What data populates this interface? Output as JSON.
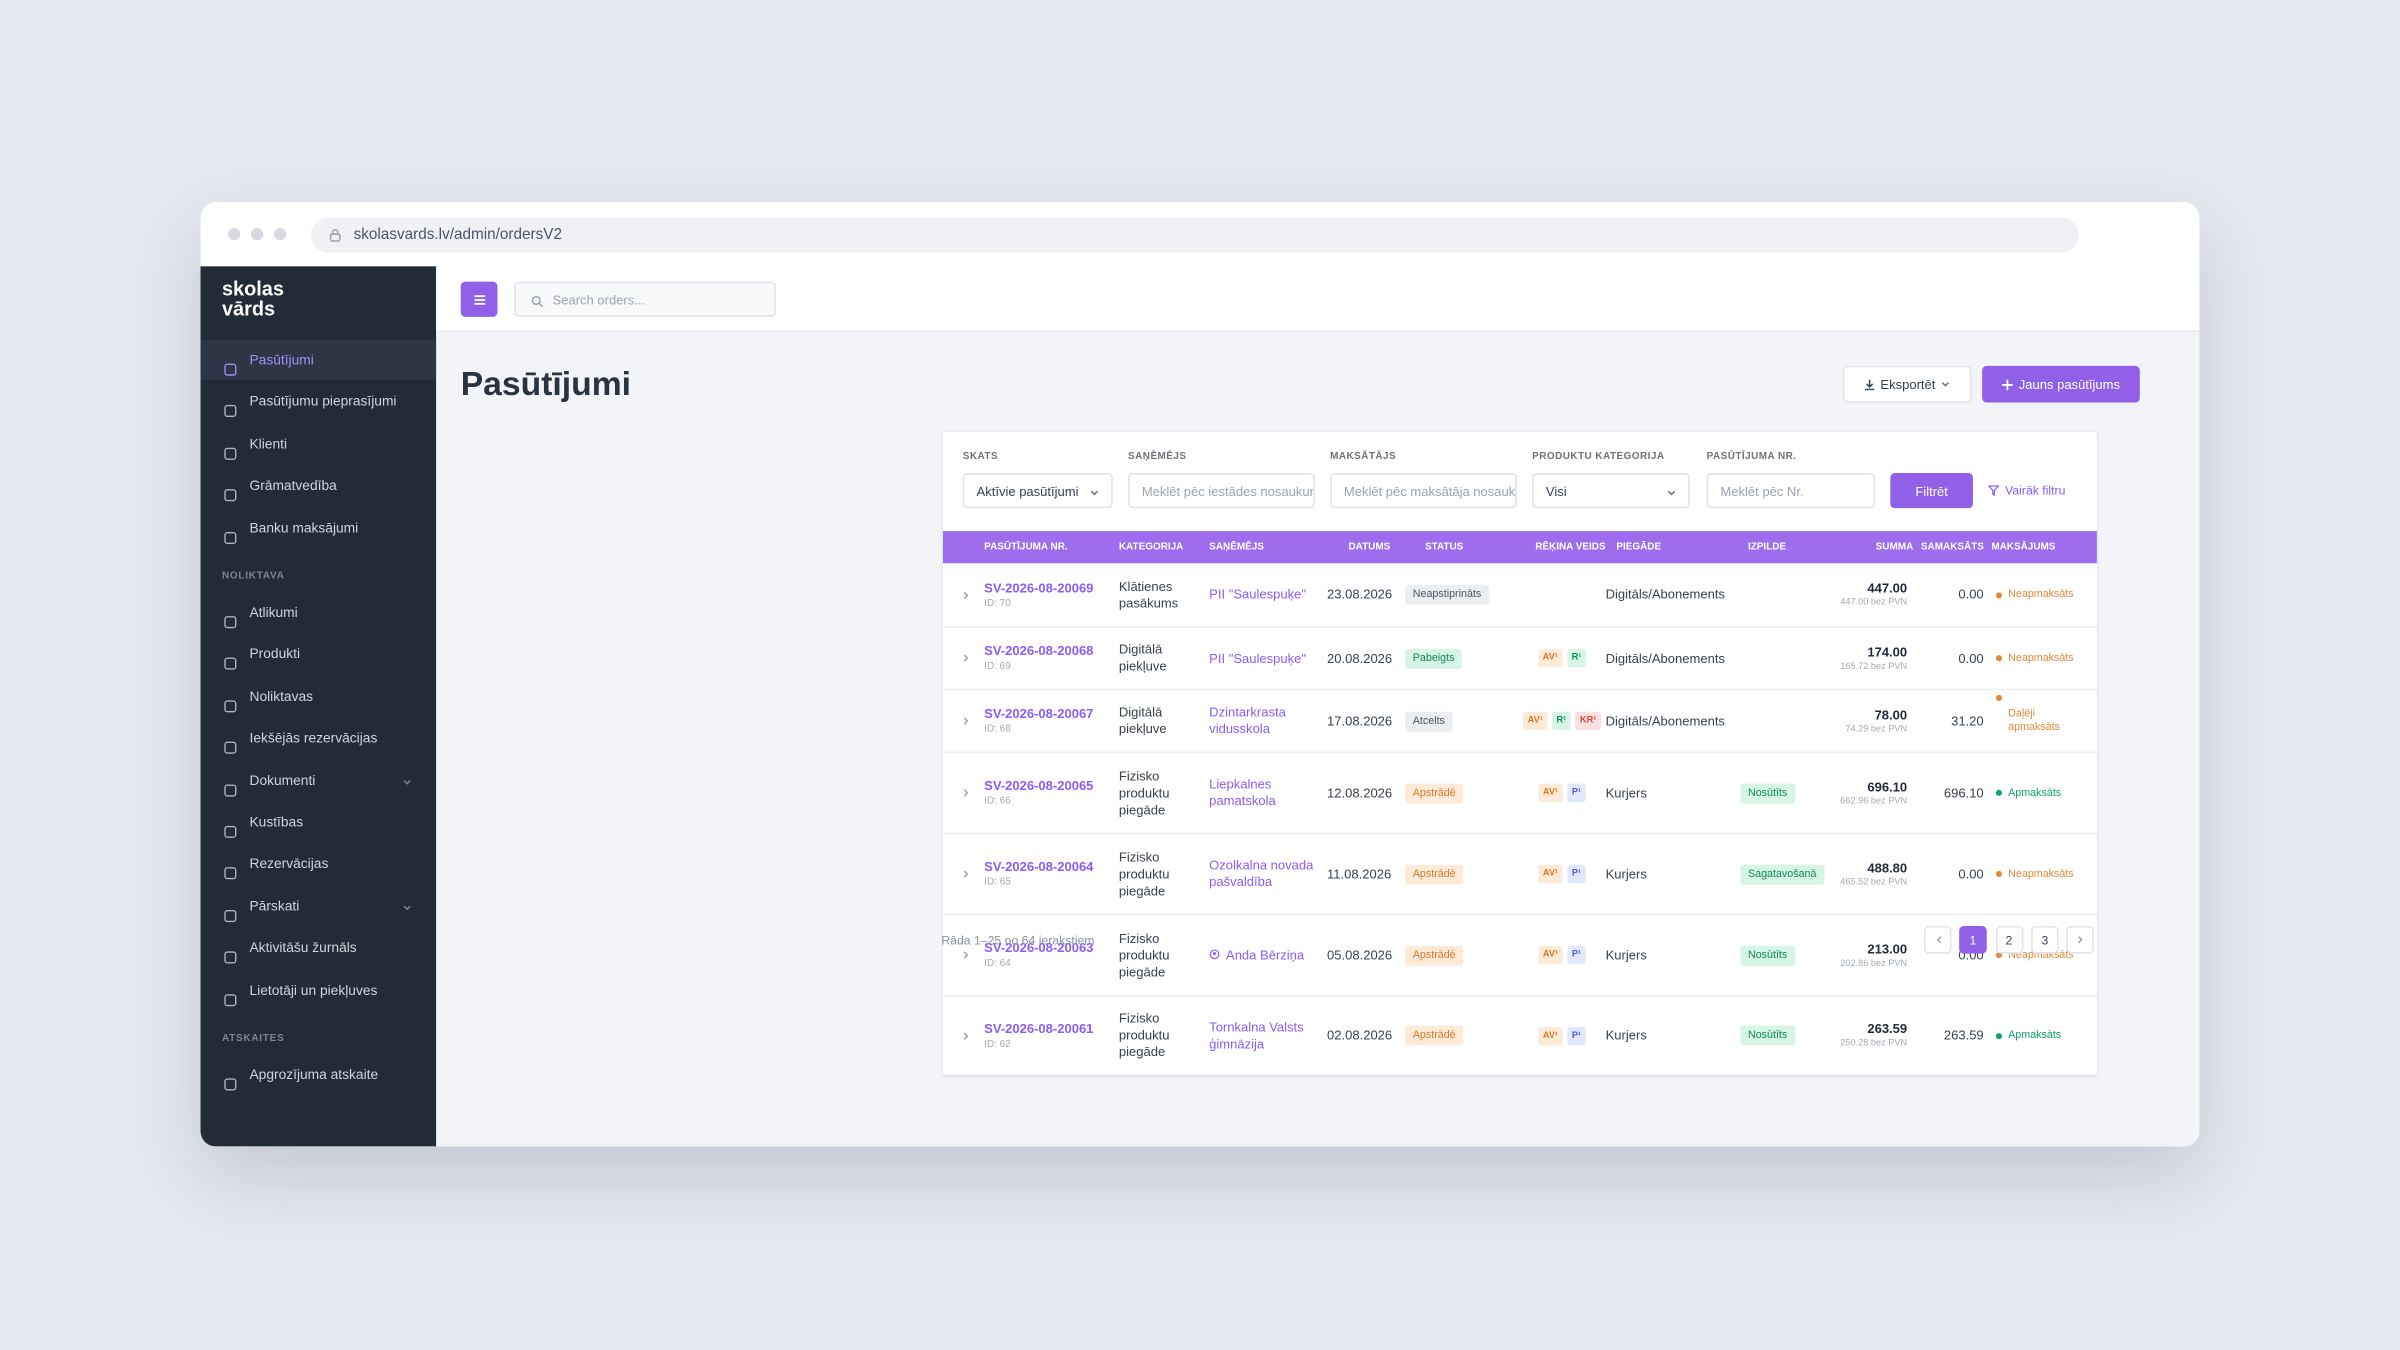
{
  "browser": {
    "url": "skolasvards.lv/admin/ordersV2"
  },
  "sidebar": {
    "brand": [
      "skolas",
      "vārds"
    ],
    "sections": [
      {
        "items": [
          {
            "label": "Pasūtījumi",
            "active": true
          },
          {
            "label": "Pasūtījumu pieprasījumi"
          },
          {
            "label": "Klienti"
          },
          {
            "label": "Grāmatvedība"
          },
          {
            "label": "Banku maksājumi"
          }
        ]
      },
      {
        "label": "NOLIKTAVA",
        "items": [
          {
            "label": "Atlikumi"
          },
          {
            "label": "Produkti"
          },
          {
            "label": "Noliktavas"
          },
          {
            "label": "Iekšējās rezervācijas"
          },
          {
            "label": "Dokumenti",
            "has_submenu": true
          },
          {
            "label": "Kustības"
          },
          {
            "label": "Rezervācijas"
          },
          {
            "label": "Pārskati",
            "has_submenu": true
          },
          {
            "label": "Aktivitāšu žurnāls"
          },
          {
            "label": "Lietotāji un piekļuves"
          }
        ]
      },
      {
        "label": "ATSKAITES",
        "items": [
          {
            "label": "Apgrozījuma atskaite"
          }
        ]
      }
    ]
  },
  "topbar": {
    "search_placeholder": "Search orders..."
  },
  "page": {
    "title": "Pasūtījumi",
    "export": "Eksportēt",
    "new": "Jauns pasūtījums"
  },
  "filters": {
    "fields": [
      {
        "label": "SKATS",
        "value": "Aktīvie pasūtījumi",
        "select": true
      },
      {
        "label": "SAŅĒMĒJS",
        "placeholder": "Meklēt pēc iestādes nosaukuma"
      },
      {
        "label": "MAKSĀTĀJS",
        "placeholder": "Meklēt pēc maksātāja nosaukuma"
      },
      {
        "label": "PRODUKTU KATEGORIJA",
        "value": "Visi",
        "select": true
      },
      {
        "label": "PASŪTĪJUMA NR.",
        "placeholder": "Meklēt pēc Nr."
      }
    ],
    "apply": "Filtrēt",
    "more": "Vairāk filtru"
  },
  "table": {
    "headers": [
      "PASŪTĪJUMA NR.",
      "KATEGORIJA",
      "SAŅĒMĒJS",
      "DATUMS",
      "STATUS",
      "RĒĶINA VEIDS",
      "PIEGĀDE",
      "IZPILDE",
      "SUMMA",
      "SAMAKSĀTS",
      "MAKSĀJUMS"
    ],
    "rows": [
      {
        "nr": "SV-2026-08-20069",
        "id": "ID: 70",
        "category": "Klātienes pasākums",
        "recipient": "PII \"Saulespuķe\"",
        "date": "23.08.2026",
        "status": {
          "label": "Neapstiprināts",
          "tone": "gray"
        },
        "invoices": [],
        "delivery": "Digitāls/Abonements",
        "fulfillment": null,
        "sum": "447.00",
        "net": "447.00 bez PVN",
        "paid": "0.00",
        "payment": {
          "label": "Neapmaksāts",
          "tone": "orange"
        }
      },
      {
        "nr": "SV-2026-08-20068",
        "id": "ID: 69",
        "category": "Digitālā piekļuve",
        "recipient": "PII \"Saulespuķe\"",
        "date": "20.08.2026",
        "status": {
          "label": "Pabeigts",
          "tone": "green"
        },
        "invoices": [
          {
            "label": "AV¹",
            "tone": "orange"
          },
          {
            "label": "R¹",
            "tone": "green"
          }
        ],
        "delivery": "Digitāls/Abonements",
        "fulfillment": null,
        "sum": "174.00",
        "net": "165.72 bez PVN",
        "paid": "0.00",
        "payment": {
          "label": "Neapmaksāts",
          "tone": "orange"
        }
      },
      {
        "nr": "SV-2026-08-20067",
        "id": "ID: 68",
        "category": "Digitālā piekļuve",
        "recipient": "Dzintarkrasta vidusskola",
        "date": "17.08.2026",
        "status": {
          "label": "Atcelts",
          "tone": "gray"
        },
        "invoices": [
          {
            "label": "AV¹",
            "tone": "orange"
          },
          {
            "label": "R¹",
            "tone": "green"
          },
          {
            "label": "KR¹",
            "tone": "red"
          }
        ],
        "delivery": "Digitāls/Abonements",
        "fulfillment": null,
        "sum": "78.00",
        "net": "74.29 bez PVN",
        "paid": "31.20",
        "payment": {
          "label": "Daļēji apmaksāts",
          "tone": "orange"
        }
      },
      {
        "nr": "SV-2026-08-20065",
        "id": "ID: 66",
        "category": "Fizisko produktu piegāde",
        "recipient": "Liepkalnes pamatskola",
        "date": "12.08.2026",
        "status": {
          "label": "Apstrādē",
          "tone": "orange"
        },
        "invoices": [
          {
            "label": "AV¹",
            "tone": "orange"
          },
          {
            "label": "P¹",
            "tone": "blue"
          }
        ],
        "delivery": "Kurjers",
        "fulfillment": "Nosūtīts",
        "sum": "696.10",
        "net": "662.96 bez PVN",
        "paid": "696.10",
        "payment": {
          "label": "Apmaksāts",
          "tone": "green"
        }
      },
      {
        "nr": "SV-2026-08-20064",
        "id": "ID: 65",
        "category": "Fizisko produktu piegāde",
        "recipient": "Ozolkalna novada pašvaldība",
        "date": "11.08.2026",
        "status": {
          "label": "Apstrādē",
          "tone": "orange"
        },
        "invoices": [
          {
            "label": "AV¹",
            "tone": "orange"
          },
          {
            "label": "P¹",
            "tone": "blue"
          }
        ],
        "delivery": "Kurjers",
        "fulfillment": "Sagatavošanā",
        "sum": "488.80",
        "net": "465.52 bez PVN",
        "paid": "0.00",
        "payment": {
          "label": "Neapmaksāts",
          "tone": "orange"
        }
      },
      {
        "nr": "SV-2026-08-20063",
        "id": "ID: 64",
        "category": "Fizisko produktu piegāde",
        "recipient": "Anda Bērziņa",
        "person": true,
        "date": "05.08.2026",
        "status": {
          "label": "Apstrādē",
          "tone": "orange"
        },
        "invoices": [
          {
            "label": "AV¹",
            "tone": "orange"
          },
          {
            "label": "P¹",
            "tone": "blue"
          }
        ],
        "delivery": "Kurjers",
        "fulfillment": "Nosūtīts",
        "sum": "213.00",
        "net": "202.86 bez PVN",
        "paid": "0.00",
        "payment": {
          "label": "Neapmaksāts",
          "tone": "orange"
        }
      },
      {
        "nr": "SV-2026-08-20061",
        "id": "ID: 62",
        "category": "Fizisko produktu piegāde",
        "recipient": "Tornkalna Valsts ģimnāzija",
        "date": "02.08.2026",
        "status": {
          "label": "Apstrādē",
          "tone": "orange"
        },
        "invoices": [
          {
            "label": "AV¹",
            "tone": "orange"
          },
          {
            "label": "P¹",
            "tone": "blue"
          }
        ],
        "delivery": "Kurjers",
        "fulfillment": "Nosūtīts",
        "sum": "263.59",
        "net": "250.28 bez PVN",
        "paid": "263.59",
        "payment": {
          "label": "Apmaksāts",
          "tone": "green"
        }
      }
    ]
  },
  "footer": {
    "info": "Rāda 1–25 no 64 ierakstiem",
    "pages": [
      1,
      2,
      3
    ],
    "current": 1
  }
}
